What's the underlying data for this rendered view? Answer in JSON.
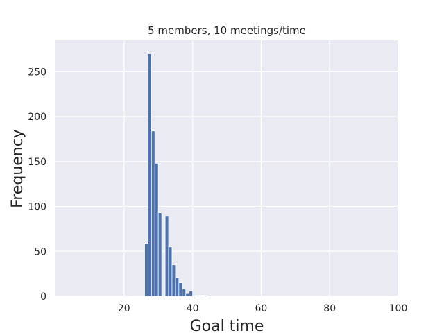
{
  "chart_data": {
    "type": "bar",
    "title": "5 members, 10 meetings/time",
    "xlabel": "Goal time",
    "ylabel": "Frequency",
    "xlim": [
      0,
      100
    ],
    "ylim": [
      0,
      285
    ],
    "xticks": [
      20,
      40,
      60,
      80,
      100
    ],
    "yticks": [
      0,
      50,
      100,
      150,
      200,
      250
    ],
    "grid": true,
    "bin_width": 1,
    "bins": [
      {
        "x": 26,
        "value": 59
      },
      {
        "x": 27,
        "value": 270
      },
      {
        "x": 28,
        "value": 184
      },
      {
        "x": 29,
        "value": 148
      },
      {
        "x": 30,
        "value": 93
      },
      {
        "x": 31,
        "value": 0
      },
      {
        "x": 32,
        "value": 89
      },
      {
        "x": 33,
        "value": 55
      },
      {
        "x": 34,
        "value": 35
      },
      {
        "x": 35,
        "value": 21
      },
      {
        "x": 36,
        "value": 15
      },
      {
        "x": 37,
        "value": 8
      },
      {
        "x": 38,
        "value": 3
      },
      {
        "x": 39,
        "value": 6
      },
      {
        "x": 40,
        "value": 0
      },
      {
        "x": 41,
        "value": 1
      },
      {
        "x": 42,
        "value": 1
      },
      {
        "x": 43,
        "value": 1
      },
      {
        "x": 44,
        "value": 0
      },
      {
        "x": 45,
        "value": 0
      },
      {
        "x": 46,
        "value": 0
      },
      {
        "x": 47,
        "value": 0
      },
      {
        "x": 48,
        "value": 0
      },
      {
        "x": 49,
        "value": 0
      },
      {
        "x": 50,
        "value": 0
      },
      {
        "x": 51,
        "value": 0
      },
      {
        "x": 52,
        "value": 0
      },
      {
        "x": 53,
        "value": 0
      },
      {
        "x": 54,
        "value": 0
      },
      {
        "x": 55,
        "value": 0
      },
      {
        "x": 56,
        "value": 0
      },
      {
        "x": 57,
        "value": 0
      },
      {
        "x": 58,
        "value": 0
      },
      {
        "x": 59,
        "value": 0
      },
      {
        "x": 60,
        "value": 0
      }
    ]
  },
  "colors": {
    "plot_background": "#eaeaf2",
    "grid": "#ffffff",
    "bar_fill": "#4c72b0",
    "bar_edge": "#ffffff"
  }
}
